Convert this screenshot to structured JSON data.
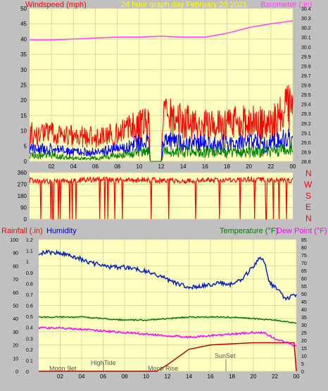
{
  "header": {
    "left": "Windspeed (mph)",
    "center": "24 hour graph day   February 20 2021",
    "right": "Barometer (.in)"
  },
  "panel3": {
    "rain": "Rainfall (.in)",
    "hum": "Humidity",
    "temp": "Temperature (°F)",
    "dew": "Dew Point (°F)"
  },
  "compass": [
    "N",
    "W",
    "S",
    "E",
    "N"
  ],
  "annotations": [
    "Moon Set",
    "HighTide",
    "Moon Rise",
    "SunSet"
  ],
  "colors": {
    "bg": "#c0c0c0",
    "plot": "#ffffc0",
    "grid": "#d8d8a0",
    "wind_gust": "#ff0000",
    "wind_avg": "#0000ff",
    "wind_low": "#008000",
    "baro": "#ff40ff",
    "title": "#ffff00",
    "humidity": "#0020c0",
    "temperature": "#008000",
    "dewpoint": "#ff00ff",
    "rainfall": "#c00000"
  },
  "chart_data": [
    {
      "type": "line",
      "name": "wind-barometer",
      "title": "24 hour graph day   February 20 2021",
      "x_ticks": [
        "02",
        "04",
        "06",
        "08",
        "10",
        "12",
        "14",
        "16",
        "18",
        "20",
        "22",
        "00"
      ],
      "y_left": {
        "label": "Windspeed (mph)",
        "ylim": [
          0,
          50
        ],
        "ticks": [
          0,
          5,
          10,
          15,
          20,
          25,
          30,
          35,
          40,
          45,
          50
        ]
      },
      "y_right": {
        "label": "Barometer (.in)",
        "ylim": [
          28.8,
          30.4
        ],
        "ticks": [
          28.8,
          28.9,
          29.0,
          29.1,
          29.2,
          29.3,
          29.4,
          29.5,
          29.6,
          29.7,
          29.8,
          29.9,
          30.0,
          30.1,
          30.2,
          30.3,
          30.4
        ]
      },
      "series": [
        {
          "axis": "right",
          "x": [
            0,
            2,
            4,
            6,
            8,
            10,
            12,
            14,
            16,
            18,
            20,
            22,
            24
          ],
          "values": [
            30.07,
            30.07,
            30.08,
            30.09,
            30.1,
            30.1,
            30.11,
            30.1,
            30.1,
            30.14,
            30.2,
            30.24,
            30.27
          ]
        },
        {
          "axis": "left",
          "x": [
            0,
            2,
            4,
            6,
            8,
            10,
            10.9,
            11,
            12,
            12.2,
            14,
            16,
            18,
            20,
            22,
            24
          ],
          "values": [
            9,
            9,
            8,
            8,
            9,
            12,
            12,
            0,
            0,
            15,
            13,
            12,
            12,
            13,
            12,
            19
          ]
        },
        {
          "axis": "left",
          "x": [
            0,
            2,
            4,
            6,
            8,
            10,
            10.9,
            11,
            12,
            12.2,
            14,
            16,
            18,
            20,
            22,
            24
          ],
          "values": [
            4,
            4,
            3,
            3,
            4,
            6,
            6,
            0,
            0,
            7,
            6,
            6,
            6,
            6,
            6,
            8
          ]
        },
        {
          "axis": "left",
          "x": [
            0,
            2,
            4,
            6,
            8,
            10,
            10.9,
            11,
            12,
            12.2,
            14,
            16,
            18,
            20,
            22,
            24
          ],
          "values": [
            2,
            2,
            1,
            1,
            2,
            3,
            3,
            0,
            0,
            3,
            3,
            3,
            3,
            3,
            3,
            4
          ]
        }
      ]
    },
    {
      "type": "line",
      "name": "wind-direction",
      "x_ticks": [
        "02",
        "04",
        "06",
        "08",
        "10",
        "12",
        "14",
        "16",
        "18",
        "20",
        "22",
        "00"
      ],
      "y_left": {
        "ylim": [
          0,
          360
        ],
        "ticks": [
          0,
          90,
          180,
          270,
          360
        ]
      },
      "series": [
        {
          "axis": "left",
          "x": [
            0,
            2,
            4,
            6,
            8,
            10,
            12,
            14,
            16,
            18,
            20,
            22,
            24
          ],
          "values": [
            300,
            290,
            300,
            310,
            300,
            305,
            300,
            295,
            300,
            300,
            310,
            300,
            300
          ]
        }
      ]
    },
    {
      "type": "line",
      "name": "humidity-temperature",
      "x_ticks": [
        "02",
        "04",
        "06",
        "08",
        "10",
        "12",
        "14",
        "16",
        "18",
        "20",
        "22",
        "00"
      ],
      "y_humidity": {
        "label": "Humidity",
        "ylim": [
          0,
          100
        ],
        "ticks": [
          0,
          10,
          20,
          30,
          40,
          50,
          60,
          70,
          80,
          90,
          100
        ]
      },
      "y_rain": {
        "label": "Rainfall (.in)",
        "ylim": [
          0,
          1.2
        ],
        "ticks": [
          0,
          0.1,
          0.2,
          0.3,
          0.4,
          0.5,
          0.6,
          0.7,
          0.8,
          0.9,
          1,
          1.1,
          1.2
        ]
      },
      "y_temp": {
        "label": "Temperature (°F)",
        "ylim": [
          0,
          85
        ],
        "ticks": [
          0,
          5,
          10,
          15,
          20,
          25,
          30,
          35,
          40,
          45,
          50,
          55,
          60,
          65,
          70,
          75,
          80,
          85
        ]
      },
      "series": [
        {
          "axis": "humidity",
          "x": [
            0,
            1,
            2,
            3,
            4,
            5,
            6,
            7,
            8,
            9,
            10,
            11,
            12,
            13,
            14,
            15,
            16,
            17,
            18,
            19,
            20,
            20.5,
            21,
            21.5,
            22,
            23,
            24
          ],
          "values": [
            90,
            90,
            90,
            88,
            85,
            82,
            80,
            79,
            79,
            78,
            76,
            73,
            70,
            66,
            64,
            64,
            66,
            67,
            66,
            70,
            80,
            86,
            84,
            67,
            64,
            55,
            58
          ]
        },
        {
          "axis": "temp",
          "x": [
            0,
            2,
            4,
            6,
            8,
            10,
            12,
            14,
            16,
            18,
            20,
            22,
            24
          ],
          "values": [
            35,
            35,
            35,
            34,
            33,
            33,
            34,
            35,
            35,
            35,
            34,
            33,
            31
          ]
        },
        {
          "axis": "temp",
          "x": [
            0,
            2,
            4,
            6,
            8,
            10,
            12,
            14,
            16,
            18,
            20,
            21,
            22,
            23,
            24
          ],
          "values": [
            28,
            28,
            27,
            26,
            25,
            24,
            23,
            22,
            23,
            24,
            25,
            25,
            21,
            19,
            16
          ]
        },
        {
          "axis": "rain",
          "x": [
            0,
            11,
            12,
            13,
            14,
            16,
            18,
            20,
            22,
            23.8,
            24
          ],
          "values": [
            0,
            0,
            0.06,
            0.13,
            0.2,
            0.24,
            0.25,
            0.26,
            0.26,
            0.26,
            0
          ]
        }
      ]
    }
  ]
}
